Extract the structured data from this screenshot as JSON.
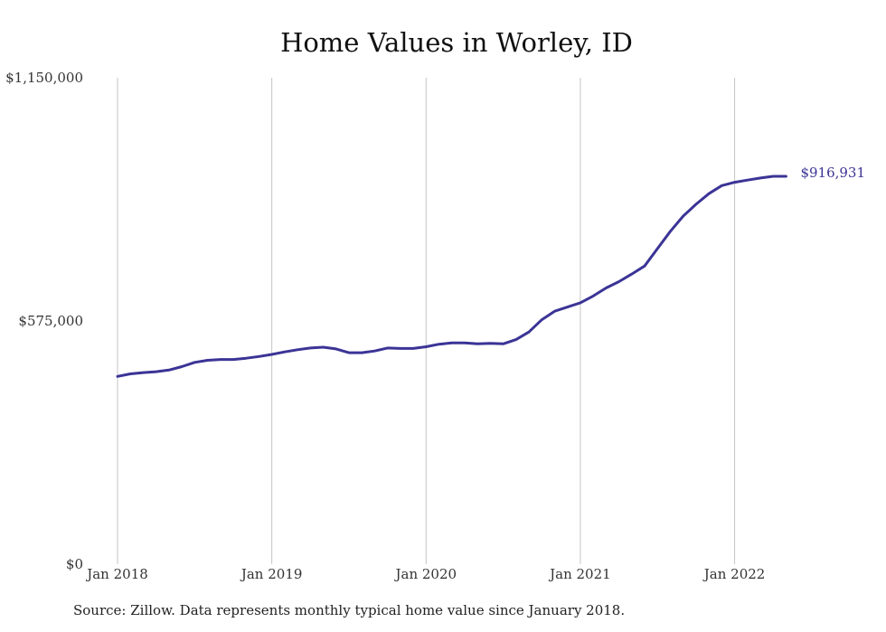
{
  "chart_data": {
    "type": "line",
    "title": "Home Values in Worley, ID",
    "source": "Source: Zillow. Data represents monthly typical home value since January 2018.",
    "xlabel": "",
    "ylabel": "",
    "x_ticks": [
      "Jan 2018",
      "Jan 2019",
      "Jan 2020",
      "Jan 2021",
      "Jan 2022"
    ],
    "y_ticks": [
      "$0",
      "$575,000",
      "$1,150,000"
    ],
    "ylim": [
      0,
      1150000
    ],
    "grid": "vertical",
    "line_color": "#3b3496",
    "end_label": "$916,931",
    "series": [
      {
        "x": [
          "2018-01",
          "2018-02",
          "2018-03",
          "2018-04",
          "2018-05",
          "2018-06",
          "2018-07",
          "2018-08",
          "2018-09",
          "2018-10",
          "2018-11",
          "2018-12",
          "2019-01",
          "2019-02",
          "2019-03",
          "2019-04",
          "2019-05",
          "2019-06",
          "2019-07",
          "2019-08",
          "2019-09",
          "2019-10",
          "2019-11",
          "2019-12",
          "2020-01",
          "2020-02",
          "2020-03",
          "2020-04",
          "2020-05",
          "2020-06",
          "2020-07",
          "2020-08",
          "2020-09",
          "2020-10",
          "2020-11",
          "2020-12",
          "2021-01",
          "2021-02",
          "2021-03",
          "2021-04",
          "2021-05",
          "2021-06",
          "2021-07",
          "2021-08",
          "2021-09",
          "2021-10",
          "2021-11",
          "2021-12",
          "2022-01",
          "2022-02",
          "2022-03",
          "2022-04",
          "2022-05"
        ],
        "values": [
          444000,
          450000,
          453000,
          455000,
          459000,
          467000,
          477000,
          482000,
          484000,
          484000,
          487000,
          491000,
          496000,
          502000,
          507000,
          511000,
          513000,
          509000,
          500000,
          500000,
          504000,
          511000,
          510000,
          510000,
          514000,
          520000,
          523000,
          523000,
          521000,
          522000,
          521000,
          531000,
          549000,
          578000,
          598000,
          608000,
          618000,
          634000,
          653000,
          668000,
          686000,
          705000,
          746000,
          787000,
          823000,
          851000,
          876000,
          895000,
          903000,
          908000,
          913000,
          917000,
          916931
        ]
      }
    ]
  }
}
